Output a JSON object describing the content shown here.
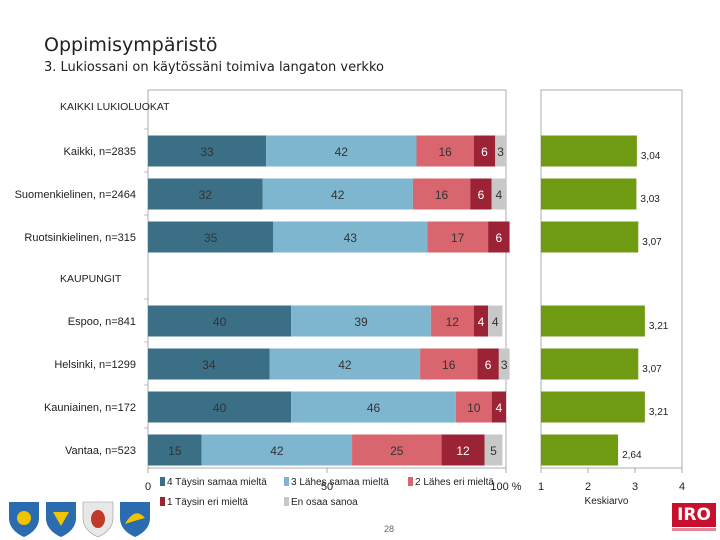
{
  "header": {
    "title": "Oppimisympäristö",
    "subtitle": "3. Lukiossani on käytössäni toimiva langaton verkko"
  },
  "chart_data": [
    {
      "type": "bar",
      "subtype": "stacked-100-horizontal",
      "sections": [
        "KAIKKI LUKIOLUOKAT",
        "KAUPUNGIT"
      ],
      "categories": [
        "Kaikki, n=2835",
        "Suomenkielinen, n=2464",
        "Ruotsinkielinen, n=315",
        "Espoo, n=841",
        "Helsinki, n=1299",
        "Kauniainen, n=172",
        "Vantaa, n=523"
      ],
      "category_section": [
        0,
        0,
        0,
        1,
        1,
        1,
        1
      ],
      "series": [
        {
          "name": "4 Täysin samaa mieltä",
          "color": "#3a6f86",
          "values": [
            33,
            32,
            35,
            40,
            34,
            40,
            15
          ]
        },
        {
          "name": "3 Lähes samaa mieltä",
          "color": "#7fb6cf",
          "values": [
            42,
            42,
            43,
            39,
            42,
            46,
            42
          ]
        },
        {
          "name": "2 Lähes eri mieltä",
          "color": "#d9666e",
          "values": [
            16,
            16,
            17,
            12,
            16,
            10,
            25
          ]
        },
        {
          "name": "1 Täysin eri mieltä",
          "color": "#9b2335",
          "values": [
            6,
            6,
            6,
            4,
            6,
            4,
            12
          ]
        },
        {
          "name": "En osaa sanoa",
          "color": "#c8c8c8",
          "values": [
            3,
            4,
            0,
            4,
            3,
            0,
            5
          ]
        }
      ],
      "data_labels": [
        [
          "33",
          "42",
          "16",
          "6",
          "3"
        ],
        [
          "32",
          "42",
          "16",
          "6",
          "4"
        ],
        [
          "35",
          "43",
          "17",
          "6",
          ""
        ],
        [
          "40",
          "39",
          "12",
          "4",
          "4"
        ],
        [
          "34",
          "42",
          "16",
          "6",
          "3"
        ],
        [
          "40",
          "46",
          "10",
          "4",
          ""
        ],
        [
          "15",
          "42",
          "25",
          "12",
          "5"
        ]
      ],
      "xaxis": {
        "ticks": [
          "0",
          "50",
          "100 %"
        ],
        "range": [
          0,
          100
        ]
      }
    },
    {
      "type": "bar",
      "subtype": "horizontal",
      "color": "#6f9b13",
      "categories": [
        "Kaikki, n=2835",
        "Suomenkielinen, n=2464",
        "Ruotsinkielinen, n=315",
        "Espoo, n=841",
        "Helsinki, n=1299",
        "Kauniainen, n=172",
        "Vantaa, n=523"
      ],
      "values": [
        3.04,
        3.03,
        3.07,
        3.21,
        3.07,
        3.21,
        2.64
      ],
      "labels": [
        "3,04",
        "3,03",
        "3,07",
        "3,21",
        "3,07",
        "3,21",
        "2,64"
      ],
      "xlabel": "Keskiarvo",
      "xaxis": {
        "ticks": [
          "1",
          "2",
          "3",
          "4"
        ],
        "range": [
          1,
          4
        ]
      }
    }
  ],
  "footer": {
    "page_number": "28",
    "logo_text": "IRO"
  }
}
